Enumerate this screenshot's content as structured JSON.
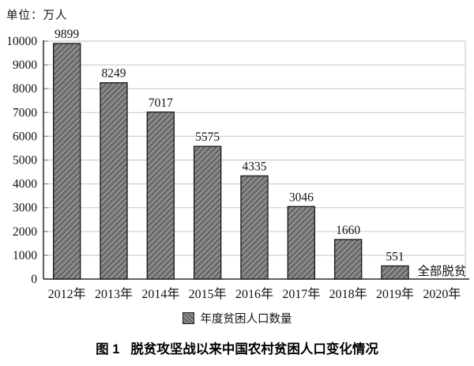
{
  "unit_label": "单位：万人",
  "chart_data": {
    "type": "bar",
    "title": "图 1 脱贫攻坚战以来中国农村贫困人口变化情况",
    "unit": "万人",
    "categories": [
      "2012年",
      "2013年",
      "2014年",
      "2015年",
      "2016年",
      "2017年",
      "2018年",
      "2019年",
      "2020年"
    ],
    "values": [
      9899,
      8249,
      7017,
      5575,
      4335,
      3046,
      1660,
      551,
      0
    ],
    "bar_labels": [
      "9899",
      "8249",
      "7017",
      "5575",
      "4335",
      "3046",
      "1660",
      "551",
      "全部脱贫"
    ],
    "annotation": {
      "category": "2020年",
      "text": "全部脱贫"
    },
    "legend_entries": [
      "年度贫困人口数量"
    ],
    "legend_position": "bottom",
    "xlabel": "",
    "ylabel": "",
    "ylim": [
      0,
      10000
    ],
    "y_ticks": [
      0,
      1000,
      2000,
      3000,
      4000,
      5000,
      6000,
      7000,
      8000,
      9000,
      10000
    ],
    "grid": "horizontal",
    "bar_style": "diagonal-hatch",
    "colors": {
      "bar_base": "#6a6a6a",
      "bar_stripe": "#9a9a9a",
      "bar_border": "#1f1f1f",
      "gridline": "#cfcfcf",
      "tick": "#909090",
      "axis": "#2a2a2a",
      "text": "#111111"
    }
  },
  "legend": {
    "label": "年度贫困人口数量"
  },
  "caption": {
    "number": "图 1",
    "title": "脱贫攻坚战以来中国农村贫困人口变化情况"
  }
}
